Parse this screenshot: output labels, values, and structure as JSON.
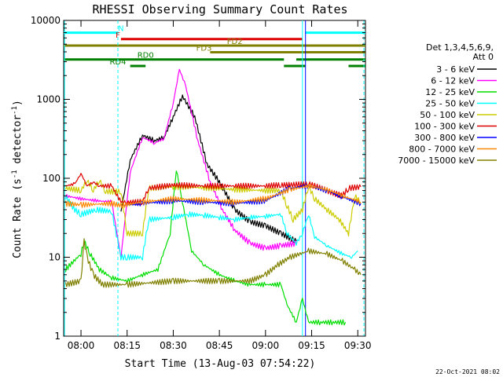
{
  "chart_data": {
    "type": "line",
    "title": "RHESSI Observing Summary Count Rates",
    "xlabel": "Start Time (13-Aug-03 07:54:22)",
    "ylabel_main": "Count Rate (s",
    "ylabel_sup": "-1",
    "ylabel_tail": " detector",
    "ylabel_sup2": "-1",
    "ylabel_end": ")",
    "yscale": "log",
    "ylim": [
      1,
      10000
    ],
    "xlim": [
      "07:54:22",
      "09:32:30"
    ],
    "xticks": [
      "08:00",
      "08:15",
      "08:30",
      "08:45",
      "09:00",
      "09:15",
      "09:30"
    ],
    "yticks": [
      "1",
      "10",
      "100",
      "1000",
      "10000"
    ],
    "legend_header": [
      "Det 1,3,4,5,6,9,",
      "Att 0"
    ],
    "legend_placement": "right",
    "series": [
      {
        "name": "3 - 6 keV",
        "color": "#000000",
        "points": [
          [
            "08:13",
            38
          ],
          [
            "08:16",
            170
          ],
          [
            "08:20",
            350
          ],
          [
            "08:24",
            300
          ],
          [
            "08:27",
            330
          ],
          [
            "08:30",
            600
          ],
          [
            "08:33",
            1100
          ],
          [
            "08:37",
            600
          ],
          [
            "08:41",
            150
          ],
          [
            "08:45",
            90
          ],
          [
            "08:50",
            40
          ],
          [
            "08:55",
            28
          ],
          [
            "09:00",
            25
          ],
          [
            "09:05",
            20
          ],
          [
            "09:10",
            16
          ]
        ]
      },
      {
        "name": "6 - 12 keV",
        "color": "#ff00ff",
        "points": [
          [
            "07:55",
            60
          ],
          [
            "08:00",
            55
          ],
          [
            "08:05",
            52
          ],
          [
            "08:10",
            50
          ],
          [
            "08:13",
            10
          ],
          [
            "08:16",
            120
          ],
          [
            "08:20",
            330
          ],
          [
            "08:24",
            280
          ],
          [
            "08:27",
            320
          ],
          [
            "08:30",
            900
          ],
          [
            "08:32",
            2400
          ],
          [
            "08:34",
            1500
          ],
          [
            "08:38",
            300
          ],
          [
            "08:42",
            90
          ],
          [
            "08:46",
            40
          ],
          [
            "08:50",
            22
          ],
          [
            "08:55",
            15
          ],
          [
            "09:00",
            13
          ],
          [
            "09:05",
            14
          ],
          [
            "09:10",
            15
          ]
        ]
      },
      {
        "name": "12 - 25 keV",
        "color": "#00dd00",
        "points": [
          [
            "07:55",
            7
          ],
          [
            "08:00",
            11
          ],
          [
            "08:01",
            16
          ],
          [
            "08:03",
            11
          ],
          [
            "08:06",
            7
          ],
          [
            "08:10",
            5.5
          ],
          [
            "08:15",
            5
          ],
          [
            "08:20",
            6
          ],
          [
            "08:25",
            7
          ],
          [
            "08:29",
            20
          ],
          [
            "08:31",
            130
          ],
          [
            "08:33",
            50
          ],
          [
            "08:36",
            12
          ],
          [
            "08:40",
            8
          ],
          [
            "08:45",
            6
          ],
          [
            "08:50",
            5
          ],
          [
            "08:55",
            4.5
          ],
          [
            "09:00",
            4.5
          ],
          [
            "09:05",
            4.5
          ],
          [
            "09:07",
            2.5
          ],
          [
            "09:10",
            1.5
          ],
          [
            "09:12",
            3
          ],
          [
            "09:14",
            1.5
          ],
          [
            "09:18",
            1.5
          ],
          [
            "09:22",
            1.5
          ],
          [
            "09:26",
            1.5
          ]
        ]
      },
      {
        "name": "25 - 50 keV",
        "color": "#00ffff",
        "points": [
          [
            "07:55",
            58
          ],
          [
            "07:58",
            40
          ],
          [
            "08:00",
            35
          ],
          [
            "08:05",
            40
          ],
          [
            "08:10",
            38
          ],
          [
            "08:13",
            10
          ],
          [
            "08:15",
            10
          ],
          [
            "08:20",
            10
          ],
          [
            "08:22",
            30
          ],
          [
            "08:30",
            32
          ],
          [
            "08:35",
            35
          ],
          [
            "08:40",
            34
          ],
          [
            "08:45",
            32
          ],
          [
            "08:50",
            30
          ],
          [
            "08:55",
            32
          ],
          [
            "09:00",
            33
          ],
          [
            "09:05",
            35
          ],
          [
            "09:07",
            20
          ],
          [
            "09:10",
            15
          ],
          [
            "09:12",
            20
          ],
          [
            "09:14",
            35
          ],
          [
            "09:16",
            18
          ],
          [
            "09:20",
            14
          ],
          [
            "09:25",
            11
          ],
          [
            "09:28",
            10
          ],
          [
            "09:30",
            12
          ]
        ]
      },
      {
        "name": "50 - 100 keV",
        "color": "#cccc00",
        "points": [
          [
            "07:55",
            75
          ],
          [
            "08:00",
            70
          ],
          [
            "08:02",
            95
          ],
          [
            "08:04",
            70
          ],
          [
            "08:06",
            95
          ],
          [
            "08:08",
            68
          ],
          [
            "08:13",
            68
          ],
          [
            "08:15",
            20
          ],
          [
            "08:20",
            20
          ],
          [
            "08:22",
            75
          ],
          [
            "08:30",
            78
          ],
          [
            "08:40",
            76
          ],
          [
            "08:50",
            72
          ],
          [
            "09:00",
            70
          ],
          [
            "09:05",
            70
          ],
          [
            "09:07",
            45
          ],
          [
            "09:09",
            30
          ],
          [
            "09:12",
            40
          ],
          [
            "09:14",
            80
          ],
          [
            "09:16",
            55
          ],
          [
            "09:20",
            40
          ],
          [
            "09:24",
            30
          ],
          [
            "09:27",
            20
          ],
          [
            "09:29",
            60
          ],
          [
            "09:31",
            50
          ]
        ]
      },
      {
        "name": "100 - 300 keV",
        "color": "#dd0000",
        "points": [
          [
            "07:55",
            80
          ],
          [
            "07:58",
            85
          ],
          [
            "08:00",
            115
          ],
          [
            "08:02",
            80
          ],
          [
            "08:04",
            90
          ],
          [
            "08:06",
            80
          ],
          [
            "08:10",
            80
          ],
          [
            "08:13",
            50
          ],
          [
            "08:15",
            50
          ],
          [
            "08:20",
            50
          ],
          [
            "08:22",
            75
          ],
          [
            "08:30",
            82
          ],
          [
            "08:40",
            80
          ],
          [
            "08:50",
            80
          ],
          [
            "09:00",
            80
          ],
          [
            "09:05",
            82
          ],
          [
            "09:08",
            82
          ],
          [
            "09:14",
            85
          ],
          [
            "09:18",
            75
          ],
          [
            "09:22",
            65
          ],
          [
            "09:25",
            60
          ],
          [
            "09:27",
            75
          ],
          [
            "09:31",
            78
          ]
        ]
      },
      {
        "name": "300 - 800 keV",
        "color": "#0000ff",
        "points": [
          [
            "08:13",
            45
          ],
          [
            "08:20",
            48
          ],
          [
            "08:30",
            52
          ],
          [
            "08:40",
            50
          ],
          [
            "08:50",
            48
          ],
          [
            "09:00",
            52
          ],
          [
            "09:08",
            75
          ],
          [
            "09:14",
            80
          ],
          [
            "09:20",
            70
          ],
          [
            "09:25",
            58
          ],
          [
            "09:31",
            48
          ]
        ]
      },
      {
        "name": "800 - 7000 keV",
        "color": "#ff8800",
        "points": [
          [
            "07:55",
            48
          ],
          [
            "08:00",
            46
          ],
          [
            "08:10",
            48
          ],
          [
            "08:13",
            45
          ],
          [
            "08:20",
            50
          ],
          [
            "08:30",
            55
          ],
          [
            "08:40",
            53
          ],
          [
            "08:50",
            50
          ],
          [
            "09:00",
            55
          ],
          [
            "09:08",
            72
          ],
          [
            "09:14",
            80
          ],
          [
            "09:20",
            72
          ],
          [
            "09:25",
            60
          ],
          [
            "09:31",
            50
          ]
        ]
      },
      {
        "name": "7000 - 15000 keV",
        "color": "#808000",
        "points": [
          [
            "07:55",
            4.5
          ],
          [
            "08:00",
            5
          ],
          [
            "08:01",
            16
          ],
          [
            "08:02",
            10
          ],
          [
            "08:04",
            6
          ],
          [
            "08:07",
            4.5
          ],
          [
            "08:15",
            4.5
          ],
          [
            "08:30",
            5
          ],
          [
            "08:45",
            5
          ],
          [
            "08:55",
            5
          ],
          [
            "09:00",
            6
          ],
          [
            "09:04",
            8
          ],
          [
            "09:08",
            10
          ],
          [
            "09:14",
            12
          ],
          [
            "09:20",
            11
          ],
          [
            "09:25",
            9
          ],
          [
            "09:29",
            7
          ],
          [
            "09:31",
            6
          ]
        ]
      }
    ],
    "annotations": {
      "flags": [
        {
          "label": "N",
          "color": "#00ffff",
          "y": 7000,
          "segments": [
            [
              "07:54:22",
              "08:12"
            ],
            [
              "09:13",
              "09:32:30"
            ]
          ],
          "label_at": "08:13"
        },
        {
          "label": "F",
          "color": "#dd0000",
          "y": 5800,
          "segments": [
            [
              "08:13",
              "09:12"
            ]
          ],
          "label_at": "08:12"
        },
        {
          "label": "FD2",
          "color": "#808000",
          "y": 4800,
          "segments": [
            [
              "07:54:22",
              "09:32:30"
            ]
          ],
          "label_at": "08:50"
        },
        {
          "label": "FD3",
          "color": "#808000",
          "y": 3950,
          "segments": [
            [
              "08:42",
              "09:32:30"
            ]
          ],
          "label_at": "08:40"
        },
        {
          "label": "RD0",
          "color": "#008000",
          "y": 3200,
          "segments": [
            [
              "07:54:22",
              "09:06"
            ],
            [
              "09:10",
              "09:32:30"
            ]
          ],
          "label_at": "08:21"
        },
        {
          "label": "RD4",
          "color": "#008000",
          "y": 2650,
          "segments": [
            [
              "08:16",
              "08:21"
            ],
            [
              "09:06",
              "09:13"
            ],
            [
              "09:27",
              "09:32:30"
            ]
          ],
          "label_at": "08:12"
        }
      ],
      "vlines": [
        {
          "t": "07:54:40",
          "color": "#00ffff",
          "style": "solid"
        },
        {
          "t": "08:12",
          "color": "#00ffff",
          "style": "dashed"
        },
        {
          "t": "09:12",
          "color": "#00ffff",
          "style": "solid"
        },
        {
          "t": "09:13",
          "color": "#0000ff",
          "style": "solid"
        },
        {
          "t": "09:32",
          "color": "#00ffff",
          "style": "dashed"
        }
      ]
    },
    "grid": false
  },
  "footer": {
    "date": "22-Oct-2021 08:02"
  }
}
